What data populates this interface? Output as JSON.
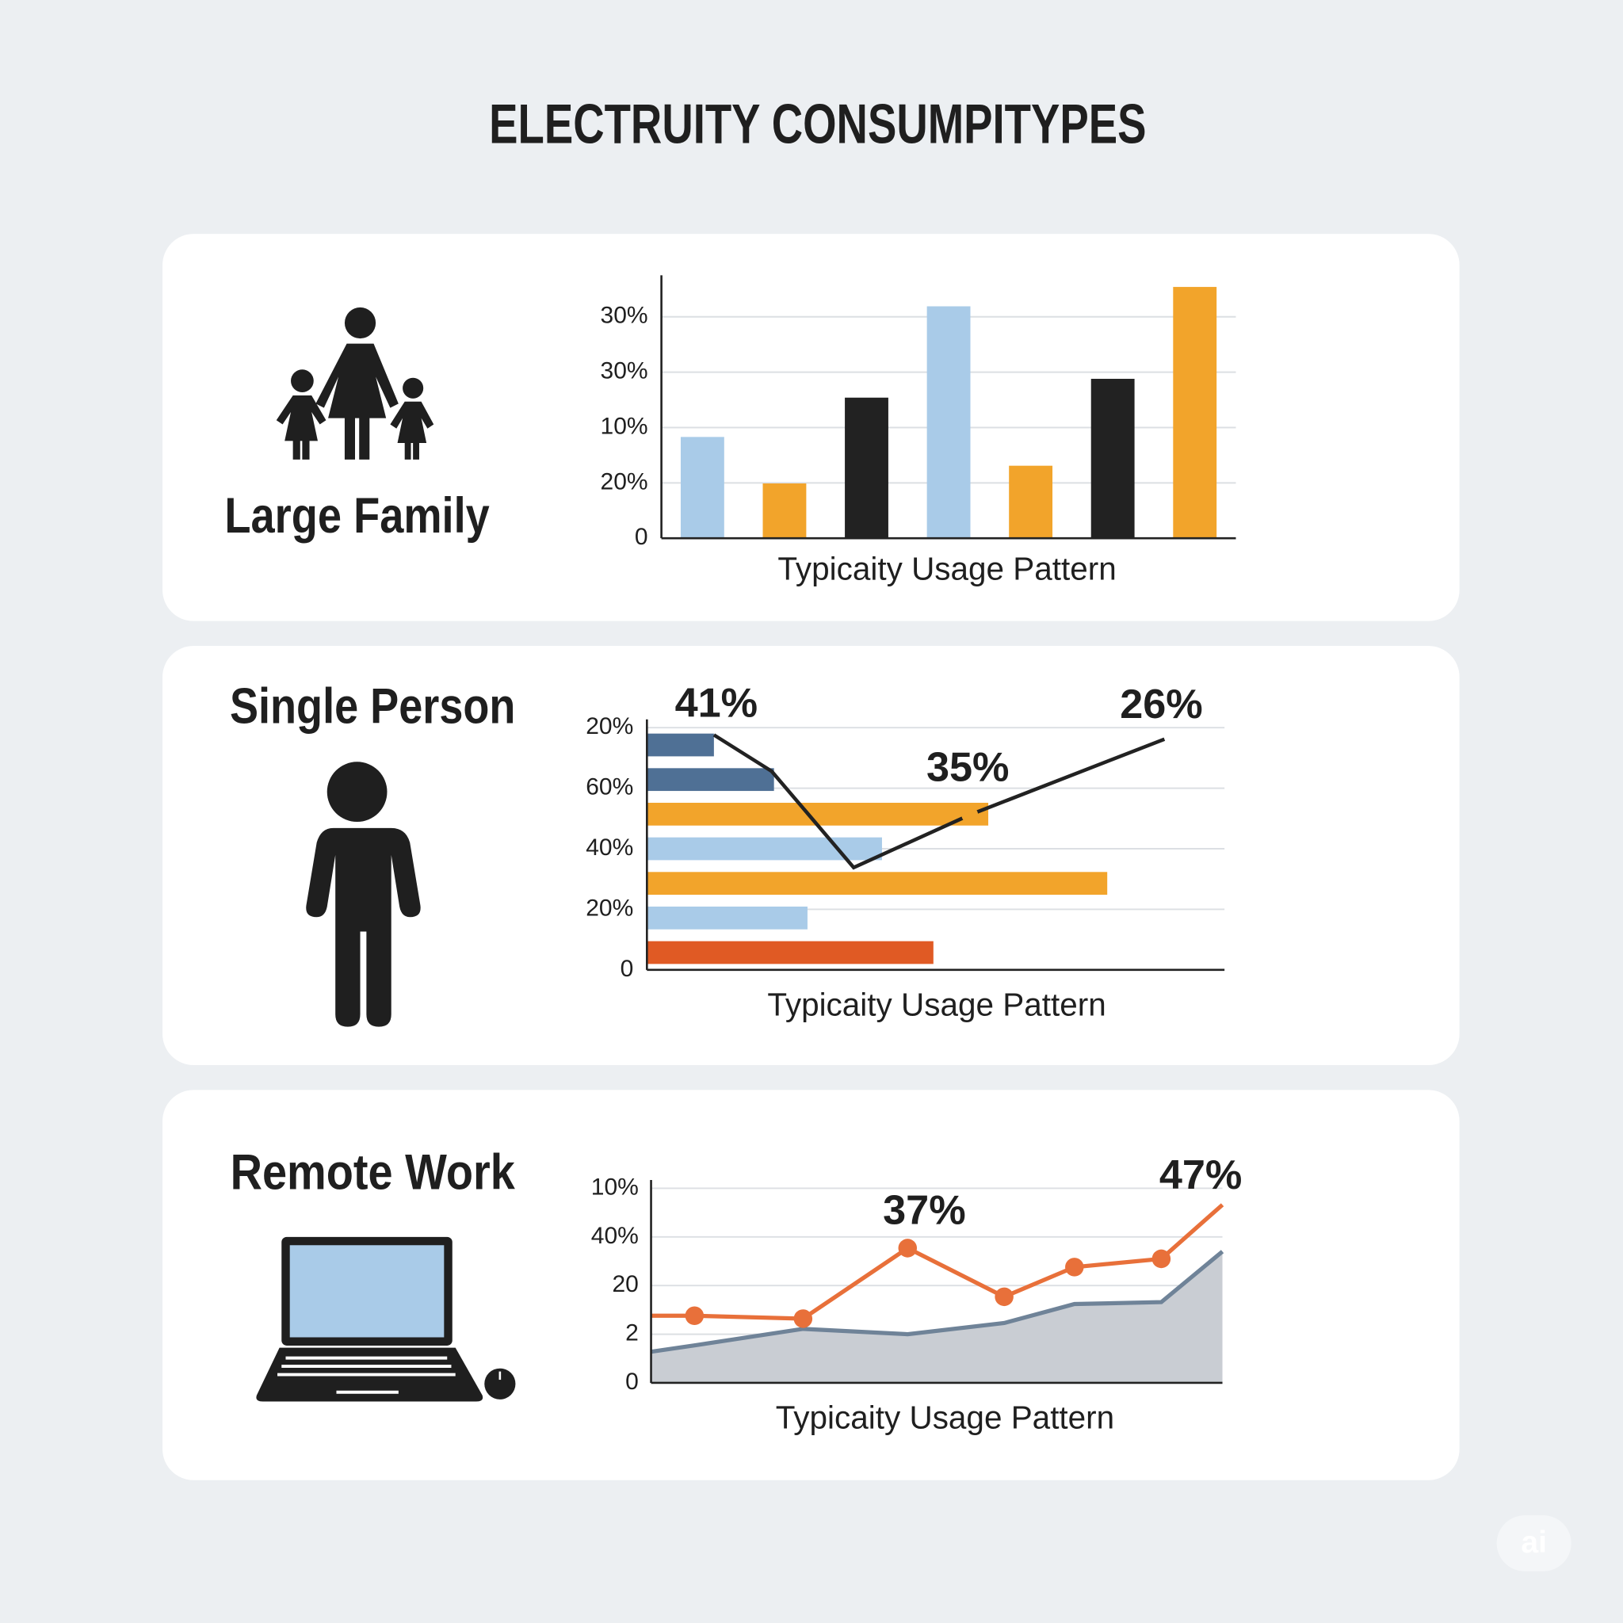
{
  "title": "ELECTRUITY CONSUMPITYPES",
  "watermark": "ai",
  "chart_data": [
    {
      "type": "bar",
      "orientation": "vertical",
      "title": "Large Family",
      "x_label": "Typicaity Usage Pattern",
      "categories": [
        null,
        null,
        null,
        null,
        null,
        null,
        null
      ],
      "values": [
        1.83,
        0.99,
        2.54,
        4.19,
        1.31,
        2.88,
        4.54
      ],
      "colors": [
        "#a9cbe8",
        "#f2a42b",
        "#222222",
        "#a9cbe8",
        "#f2a42b",
        "#222222",
        "#f2a42b"
      ],
      "ylim": [
        0,
        4.6
      ],
      "yticks": [
        0,
        {
          "value": 1,
          "label": "20%"
        },
        {
          "value": 2,
          "label": "10%"
        },
        {
          "value": 3,
          "label": "30%"
        },
        {
          "value": 4,
          "label": "30%"
        }
      ],
      "grid": true
    },
    {
      "type": "bar",
      "orientation": "horizontal",
      "title": "Single Person",
      "x_label": "Typicaity Usage Pattern",
      "categories": [
        null,
        null,
        null,
        null,
        null,
        null,
        null
      ],
      "values": [
        11.6,
        22.0,
        59.1,
        40.7,
        79.7,
        27.8,
        49.6
      ],
      "colors": [
        "#4f7095",
        "#4f7095",
        "#f2a42b",
        "#a9cbe8",
        "#f2a42b",
        "#a9cbe8",
        "#e05a24"
      ],
      "xlim": [
        0,
        100
      ],
      "ylim": [
        0,
        4
      ],
      "yticks": [
        0,
        {
          "value": 1,
          "label": "20%"
        },
        {
          "value": 2,
          "label": "40%"
        },
        {
          "value": 3,
          "label": "60%"
        },
        {
          "value": 4,
          "label": "20%"
        }
      ],
      "grid": true,
      "line": {
        "x": [
          11.6,
          21.6,
          35.8,
          55.9,
          89.6
        ],
        "values": [
          3.88,
          3.28,
          1.69,
          2.56,
          3.81
        ],
        "color": "#222222",
        "marker_color": "#f2a42b"
      },
      "annotations": [
        "41%",
        "35%",
        "26%"
      ]
    },
    {
      "type": "line",
      "title": "Remote Work",
      "x_label": "Typicaity Usage Pattern",
      "x": [
        0,
        7.6,
        26.6,
        44.9,
        61.8,
        74.1,
        89.3,
        100
      ],
      "xlim": [
        0,
        100
      ],
      "series": [
        {
          "color": "#6f8398",
          "area_color": "#c9cdd3",
          "values": [
            0.64,
            0.77,
            1.11,
            1.0,
            1.23,
            1.62,
            1.66,
            2.7
          ]
        },
        {
          "color": "#e8703a",
          "values": [
            1.38,
            1.38,
            1.32,
            2.77,
            1.77,
            2.38,
            2.55,
            3.66
          ]
        }
      ],
      "ylim": [
        0,
        4
      ],
      "yticks": [
        0,
        {
          "value": 1,
          "label": "2"
        },
        {
          "value": 2,
          "label": "20"
        },
        {
          "value": 3,
          "label": "40%"
        },
        {
          "value": 4,
          "label": "10%"
        }
      ],
      "grid": true,
      "annotations": [
        "37%",
        "47%"
      ]
    }
  ]
}
